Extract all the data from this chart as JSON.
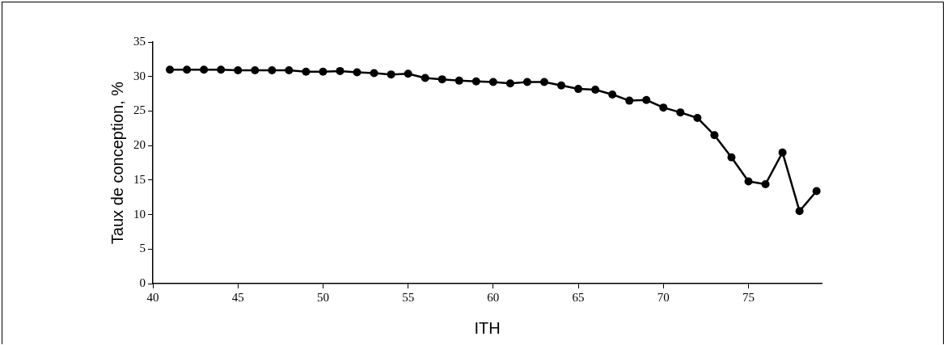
{
  "chart_data": {
    "type": "line",
    "xlabel": "ITH",
    "ylabel": "Taux de conception, %",
    "x": [
      41,
      42,
      43,
      44,
      45,
      46,
      47,
      48,
      49,
      50,
      51,
      52,
      53,
      54,
      55,
      56,
      57,
      58,
      59,
      60,
      61,
      62,
      63,
      64,
      65,
      66,
      67,
      68,
      69,
      70,
      71,
      72,
      73,
      74,
      75,
      76,
      77,
      78,
      79
    ],
    "series": [
      {
        "color": "#000000",
        "values": [
          31.0,
          31.0,
          31.0,
          31.0,
          30.9,
          30.9,
          30.9,
          30.9,
          30.7,
          30.7,
          30.8,
          30.6,
          30.5,
          30.3,
          30.4,
          29.8,
          29.6,
          29.4,
          29.3,
          29.2,
          29.0,
          29.2,
          29.2,
          28.7,
          28.2,
          28.1,
          27.4,
          26.5,
          26.6,
          25.5,
          24.8,
          24.0,
          21.5,
          18.3,
          14.8,
          14.4,
          19.0,
          10.5,
          13.4
        ]
      }
    ],
    "xlim": [
      40,
      79.3
    ],
    "xticks": [
      40,
      45,
      50,
      55,
      60,
      65,
      70,
      75
    ],
    "ylim": [
      0,
      35
    ],
    "yticks": [
      0,
      5,
      10,
      15,
      20,
      25,
      30,
      35
    ],
    "grid": false,
    "legend": false,
    "marker": "circle",
    "line_style": "solid"
  }
}
